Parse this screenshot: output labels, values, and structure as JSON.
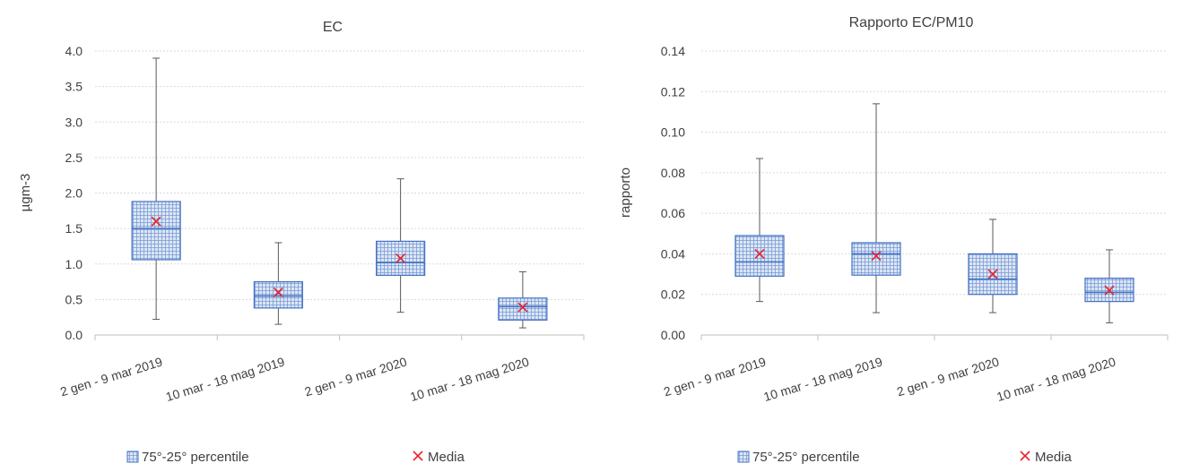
{
  "legend_labels": {
    "box": "75°-25° percentile",
    "mean": "Media"
  },
  "colors": {
    "box_fill": "#dce6f4",
    "box_stroke": "#4472c4",
    "hatch": "#7a9bd6",
    "whisker": "#595959",
    "mean_marker": "#e8202a",
    "grid": "#d9d9d9",
    "axis": "#bfbfbf",
    "text": "#404040"
  },
  "chart_data": [
    {
      "type": "box",
      "title": "EC",
      "xlabel": "",
      "ylabel": "µgm-3",
      "ylim": [
        0,
        4.0
      ],
      "yticks": [
        "0.0",
        "0.5",
        "1.0",
        "1.5",
        "2.0",
        "2.5",
        "3.0",
        "3.5",
        "4.0"
      ],
      "categories": [
        "2 gen - 9 mar 2019",
        "10 mar - 18 mag 2019",
        "2 gen - 9 mar 2020",
        "10 mar - 18 mag 2020"
      ],
      "min": [
        0.22,
        0.15,
        0.32,
        0.1
      ],
      "q1": [
        1.06,
        0.38,
        0.84,
        0.21
      ],
      "median": [
        1.5,
        0.55,
        1.02,
        0.4
      ],
      "q3": [
        1.88,
        0.75,
        1.32,
        0.52
      ],
      "max": [
        3.9,
        1.3,
        2.2,
        0.89
      ],
      "mean": [
        1.6,
        0.6,
        1.08,
        0.39
      ],
      "legend": "bottom"
    },
    {
      "type": "box",
      "title": "Rapporto EC/PM10",
      "xlabel": "",
      "ylabel": "rapporto",
      "ylim": [
        0,
        0.14
      ],
      "yticks": [
        "0.00",
        "0.02",
        "0.04",
        "0.06",
        "0.08",
        "0.10",
        "0.12",
        "0.14"
      ],
      "categories": [
        "2 gen - 9 mar 2019",
        "10 mar - 18 mag 2019",
        "2 gen - 9 mar 2020",
        "10 mar - 18 mag 2020"
      ],
      "min": [
        0.0165,
        0.011,
        0.011,
        0.006
      ],
      "q1": [
        0.029,
        0.0295,
        0.02,
        0.0165
      ],
      "median": [
        0.036,
        0.04,
        0.0275,
        0.021
      ],
      "q3": [
        0.049,
        0.0455,
        0.04,
        0.028
      ],
      "max": [
        0.087,
        0.114,
        0.057,
        0.042
      ],
      "mean": [
        0.04,
        0.039,
        0.03,
        0.022
      ],
      "legend": "bottom"
    }
  ]
}
